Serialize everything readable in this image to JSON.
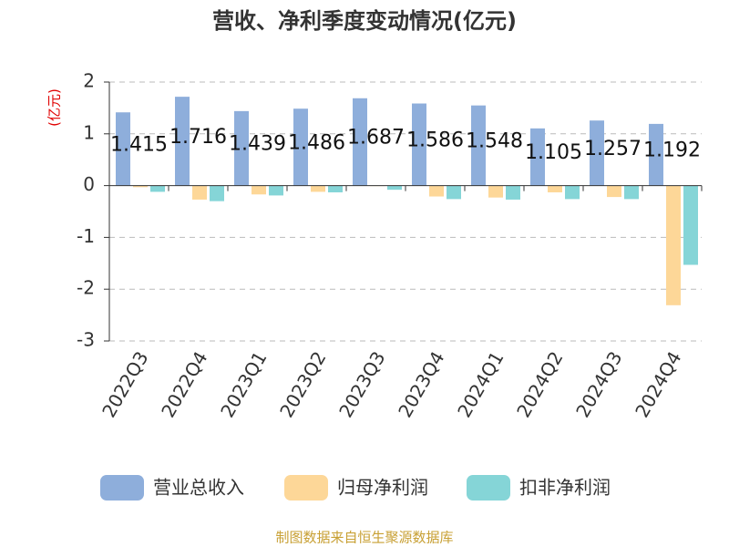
{
  "chart_data": {
    "type": "bar",
    "title": "营收、净利季度变动情况(亿元)",
    "y_label": "(亿元)",
    "categories": [
      "2022Q3",
      "2022Q4",
      "2023Q1",
      "2023Q2",
      "2023Q3",
      "2023Q4",
      "2024Q1",
      "2024Q2",
      "2024Q3",
      "2024Q4"
    ],
    "series": [
      {
        "name": "营业总收入",
        "color": "#8eaedb",
        "values": [
          1.415,
          1.716,
          1.439,
          1.486,
          1.687,
          1.586,
          1.548,
          1.105,
          1.257,
          1.192
        ],
        "show_labels": true
      },
      {
        "name": "归母净利润",
        "color": "#fdd798",
        "values": [
          -0.03,
          -0.27,
          -0.17,
          -0.12,
          -0.01,
          -0.21,
          -0.23,
          -0.13,
          -0.22,
          -2.31
        ]
      },
      {
        "name": "扣非净利润",
        "color": "#85d5d7",
        "values": [
          -0.12,
          -0.3,
          -0.19,
          -0.13,
          -0.08,
          -0.26,
          -0.27,
          -0.26,
          -0.26,
          -1.53
        ]
      }
    ],
    "ylim": [
      -3,
      2
    ],
    "yticks": [
      -3,
      -2,
      -1,
      0,
      1,
      2
    ],
    "grid": true,
    "legend": "bottom",
    "source": "制图数据来自恒生聚源数据库"
  }
}
